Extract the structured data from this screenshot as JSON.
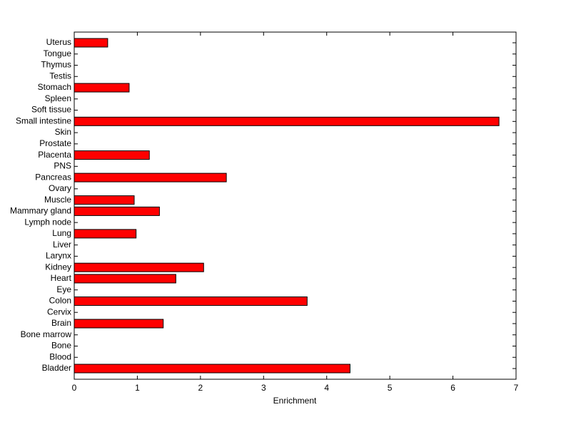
{
  "chart_data": {
    "type": "barh",
    "xlabel": "Enrichment",
    "categories": [
      "Bladder",
      "Blood",
      "Bone",
      "Bone marrow",
      "Brain",
      "Cervix",
      "Colon",
      "Eye",
      "Heart",
      "Kidney",
      "Larynx",
      "Liver",
      "Lung",
      "Lymph node",
      "Mammary gland",
      "Muscle",
      "Ovary",
      "Pancreas",
      "PNS",
      "Placenta",
      "Prostate",
      "Skin",
      "Small intestine",
      "Soft tissue",
      "Spleen",
      "Stomach",
      "Testis",
      "Thymus",
      "Tongue",
      "Uterus"
    ],
    "values": [
      4.37,
      0,
      0,
      0,
      1.41,
      0,
      3.69,
      0,
      1.61,
      2.05,
      0,
      0,
      0.98,
      0,
      1.35,
      0.95,
      0,
      2.41,
      0,
      1.19,
      0,
      0,
      6.73,
      0,
      0,
      0.87,
      0,
      0,
      0,
      0.53
    ],
    "color": "#ff0000",
    "xlim": [
      0,
      7
    ],
    "xticks": [
      0,
      1,
      2,
      3,
      4,
      5,
      6,
      7
    ]
  }
}
